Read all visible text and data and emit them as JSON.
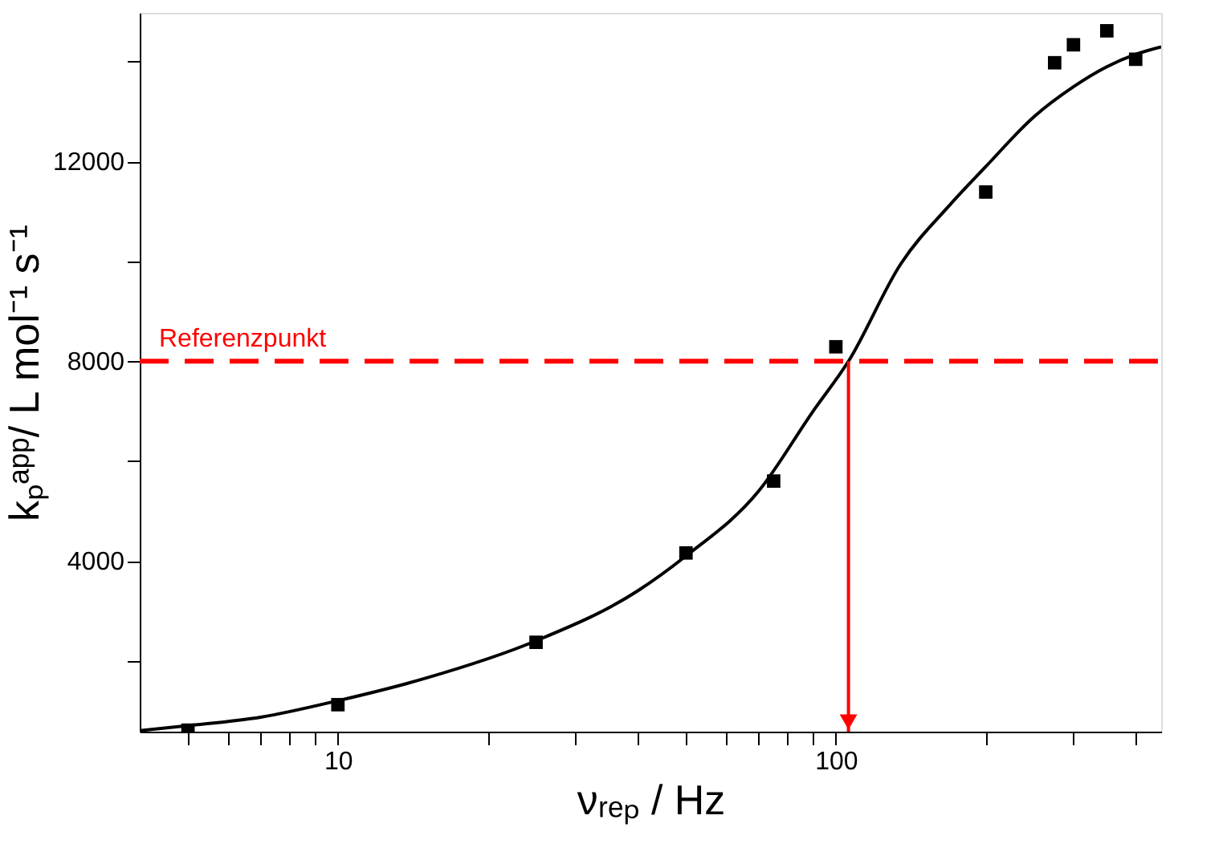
{
  "chart_data": {
    "type": "scatter",
    "xlabel": "νᵣₑₚ / Hz",
    "ylabel": "kₚᵃᵖᵖ/ L mol⁻¹ s⁻¹",
    "log": "x",
    "grid": false,
    "xlim": [
      4,
      450
    ],
    "ylim": [
      580,
      14980
    ],
    "xticks": [
      {
        "value": 5,
        "label": null
      },
      {
        "value": 6,
        "label": null
      },
      {
        "value": 7,
        "label": null
      },
      {
        "value": 8,
        "label": null
      },
      {
        "value": 9,
        "label": null
      },
      10,
      {
        "value": 20,
        "label": null
      },
      {
        "value": 30,
        "label": null
      },
      {
        "value": 40,
        "label": null
      },
      {
        "value": 50,
        "label": null
      },
      {
        "value": 60,
        "label": null
      },
      {
        "value": 70,
        "label": null
      },
      {
        "value": 80,
        "label": null
      },
      {
        "value": 90,
        "label": null
      },
      100,
      {
        "value": 200,
        "label": null
      },
      {
        "value": 300,
        "label": null
      },
      {
        "value": 400,
        "label": null
      }
    ],
    "yticks": [
      {
        "value": 2000,
        "label": null
      },
      4000,
      {
        "value": 6000,
        "label": null
      },
      8000,
      {
        "value": 10000,
        "label": null
      },
      12000,
      {
        "value": 14000,
        "label": null
      }
    ],
    "series": [
      {
        "marker": "square",
        "color": "#000000",
        "x": [
          5,
          10,
          25,
          50,
          75,
          100,
          200,
          275,
          300,
          350,
          400
        ],
        "values": [
          610,
          1120,
          2370,
          4160,
          5600,
          8290,
          11390,
          13980,
          14340,
          14620,
          14050
        ]
      },
      {
        "type": "line",
        "color": "#000000",
        "line_style": "solid",
        "x": [
          4,
          5,
          7,
          10,
          15,
          25,
          40,
          50,
          70,
          90,
          106,
          135,
          170,
          200,
          250,
          300,
          350,
          400,
          450
        ],
        "values": [
          600,
          700,
          870,
          1200,
          1650,
          2400,
          3400,
          4100,
          5400,
          7000,
          8000,
          9950,
          11150,
          11900,
          12900,
          13500,
          13900,
          14150,
          14300
        ]
      }
    ],
    "ref_lines": [
      {
        "axis": "y",
        "value": 8000,
        "label": "Referenzpunkt",
        "color": "#ff0000",
        "line_style": "dashed"
      },
      {
        "axis": "x",
        "value": 106,
        "color": "#ff0000",
        "line_style": "solid"
      }
    ]
  }
}
